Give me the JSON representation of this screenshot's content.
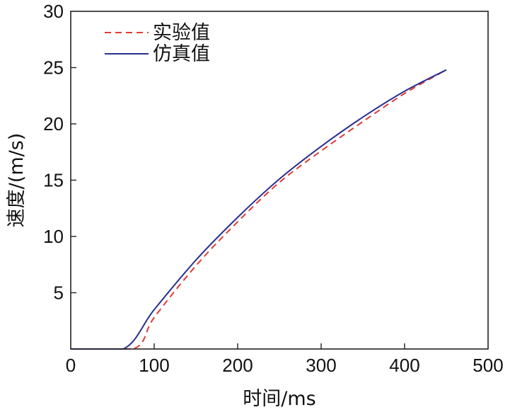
{
  "chart_data": {
    "type": "line",
    "title": "",
    "xlabel": "时间/ms",
    "ylabel": "速度/(m/s)",
    "xlim": [
      0,
      500
    ],
    "ylim": [
      0,
      30
    ],
    "xticks": [
      0,
      100,
      200,
      300,
      400,
      500
    ],
    "yticks": [
      5,
      10,
      15,
      20,
      25,
      30
    ],
    "grid": false,
    "legend_position": "top-left",
    "series": [
      {
        "name": "实验值",
        "style": "dashed",
        "color": "#e03c31",
        "x": [
          0,
          75,
          100,
          150,
          200,
          250,
          300,
          350,
          400,
          450
        ],
        "y": [
          0,
          0,
          2.8,
          7.4,
          11.3,
          14.8,
          17.6,
          20.2,
          22.7,
          24.8
        ]
      },
      {
        "name": "仿真值",
        "style": "solid",
        "color": "#2b2f8f",
        "x": [
          0,
          63,
          100,
          150,
          200,
          250,
          300,
          350,
          400,
          450
        ],
        "y": [
          0,
          0,
          3.5,
          7.9,
          11.7,
          15.1,
          18.0,
          20.6,
          22.9,
          24.8
        ]
      }
    ]
  }
}
